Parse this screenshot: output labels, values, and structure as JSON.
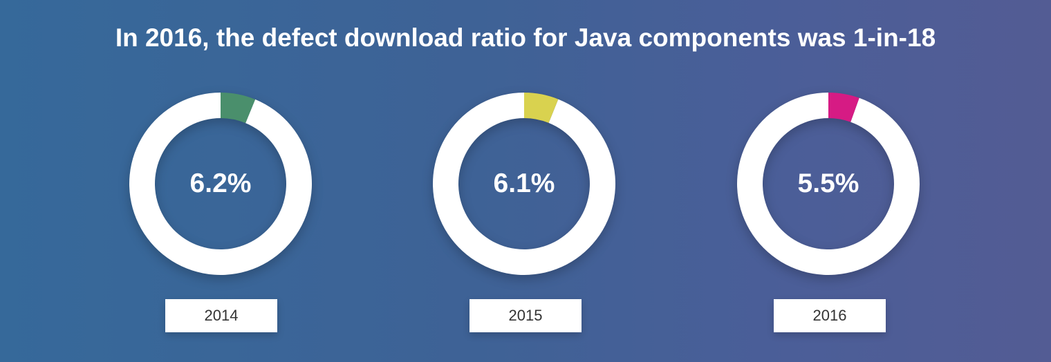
{
  "title": "In 2016, the defect download ratio for Java components was 1-in-18",
  "chart_data": [
    {
      "type": "pie",
      "category": "2014",
      "value": 6.2,
      "label": "6.2%",
      "color": "#4a8f6c",
      "rest_color": "#ffffff"
    },
    {
      "type": "pie",
      "category": "2015",
      "value": 6.1,
      "label": "6.1%",
      "color": "#d9d24f",
      "rest_color": "#ffffff"
    },
    {
      "type": "pie",
      "category": "2016",
      "value": 5.5,
      "label": "5.5%",
      "color": "#d61b84",
      "rest_color": "#ffffff"
    }
  ]
}
